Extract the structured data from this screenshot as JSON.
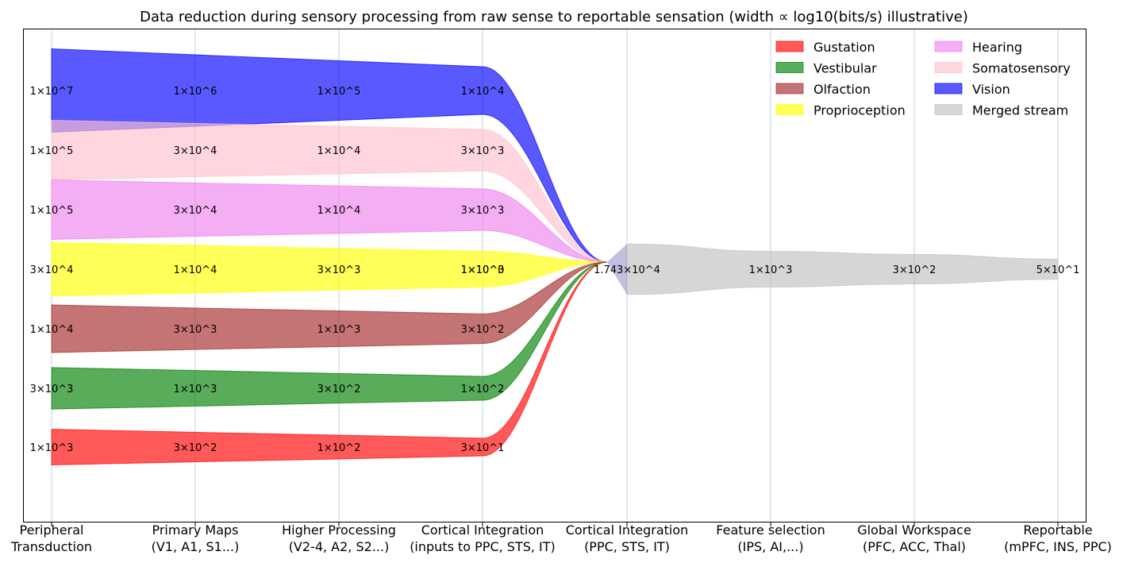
{
  "chart_data": {
    "type": "sankey",
    "title": "Data reduction during sensory processing from raw sense to reportable sensation (width ∝ log10(bits/s) illustrative)",
    "stages": [
      [
        "Peripheral",
        "Transduction"
      ],
      [
        "Primary Maps",
        "(V1, A1, S1...)"
      ],
      [
        "Higher Processing",
        "(V2-4, A2, S2...)"
      ],
      [
        "Cortical Integration",
        "(inputs to PPC, STS, IT)"
      ],
      [
        "Cortical Integration",
        "(PPC, STS, IT)"
      ],
      [
        "Feature selection",
        "(IPS, AI,...)"
      ],
      [
        "Global Workspace",
        "(PFC, ACC, Thal)"
      ],
      [
        "Reportable",
        "(mPFC, INS, PPC)"
      ]
    ],
    "series": [
      {
        "name": "Vision",
        "color": "#0000ff",
        "values": [
          10000000.0,
          1000000.0,
          100000.0,
          10000.0
        ],
        "labels": [
          "1×10^7",
          "1×10^6",
          "1×10^5",
          "1×10^4"
        ]
      },
      {
        "name": "Somatosensory",
        "color": "#ffc0cb",
        "values": [
          100000.0,
          30000.0,
          10000.0,
          3000.0
        ],
        "labels": [
          "1×10^5",
          "3×10^4",
          "1×10^4",
          "3×10^3"
        ]
      },
      {
        "name": "Hearing",
        "color": "#ee82ee",
        "values": [
          100000.0,
          30000.0,
          10000.0,
          3000.0
        ],
        "labels": [
          "1×10^5",
          "3×10^4",
          "1×10^4",
          "3×10^3"
        ]
      },
      {
        "name": "Proprioception",
        "color": "#ffff00",
        "values": [
          30000.0,
          10000.0,
          3000.0,
          1000.0
        ],
        "labels": [
          "3×10^4",
          "1×10^4",
          "3×10^3",
          "1×10^3"
        ]
      },
      {
        "name": "Olfaction",
        "color": "#a52a2a",
        "values": [
          10000.0,
          3000.0,
          1000.0,
          300.0
        ],
        "labels": [
          "1×10^4",
          "3×10^3",
          "1×10^3",
          "3×10^2"
        ]
      },
      {
        "name": "Vestibular",
        "color": "#008000",
        "values": [
          3000.0,
          1000.0,
          300.0,
          100.0
        ],
        "labels": [
          "3×10^3",
          "1×10^3",
          "3×10^2",
          "1×10^2"
        ]
      },
      {
        "name": "Gustation",
        "color": "#ff0000",
        "values": [
          1000.0,
          300.0,
          100.0,
          30.0
        ],
        "labels": [
          "1×10^3",
          "3×10^2",
          "1×10^2",
          "3×10^1"
        ]
      }
    ],
    "overlap_label": "1×10^0",
    "merged": {
      "name": "Merged stream",
      "color": "#c0c0c0",
      "values": [
        17430.0,
        1000.0,
        300.0,
        50.0
      ],
      "labels": [
        "1.743×10^4",
        "1×10^3",
        "3×10^2",
        "5×10^1"
      ]
    },
    "legend": {
      "placement": "top-right",
      "columns": [
        [
          "Gustation",
          "Vestibular",
          "Olfaction",
          "Proprioception"
        ],
        [
          "Hearing",
          "Somatosensory",
          "Vision",
          "Merged stream"
        ]
      ]
    },
    "width_scale": "log10(bits/s)"
  }
}
